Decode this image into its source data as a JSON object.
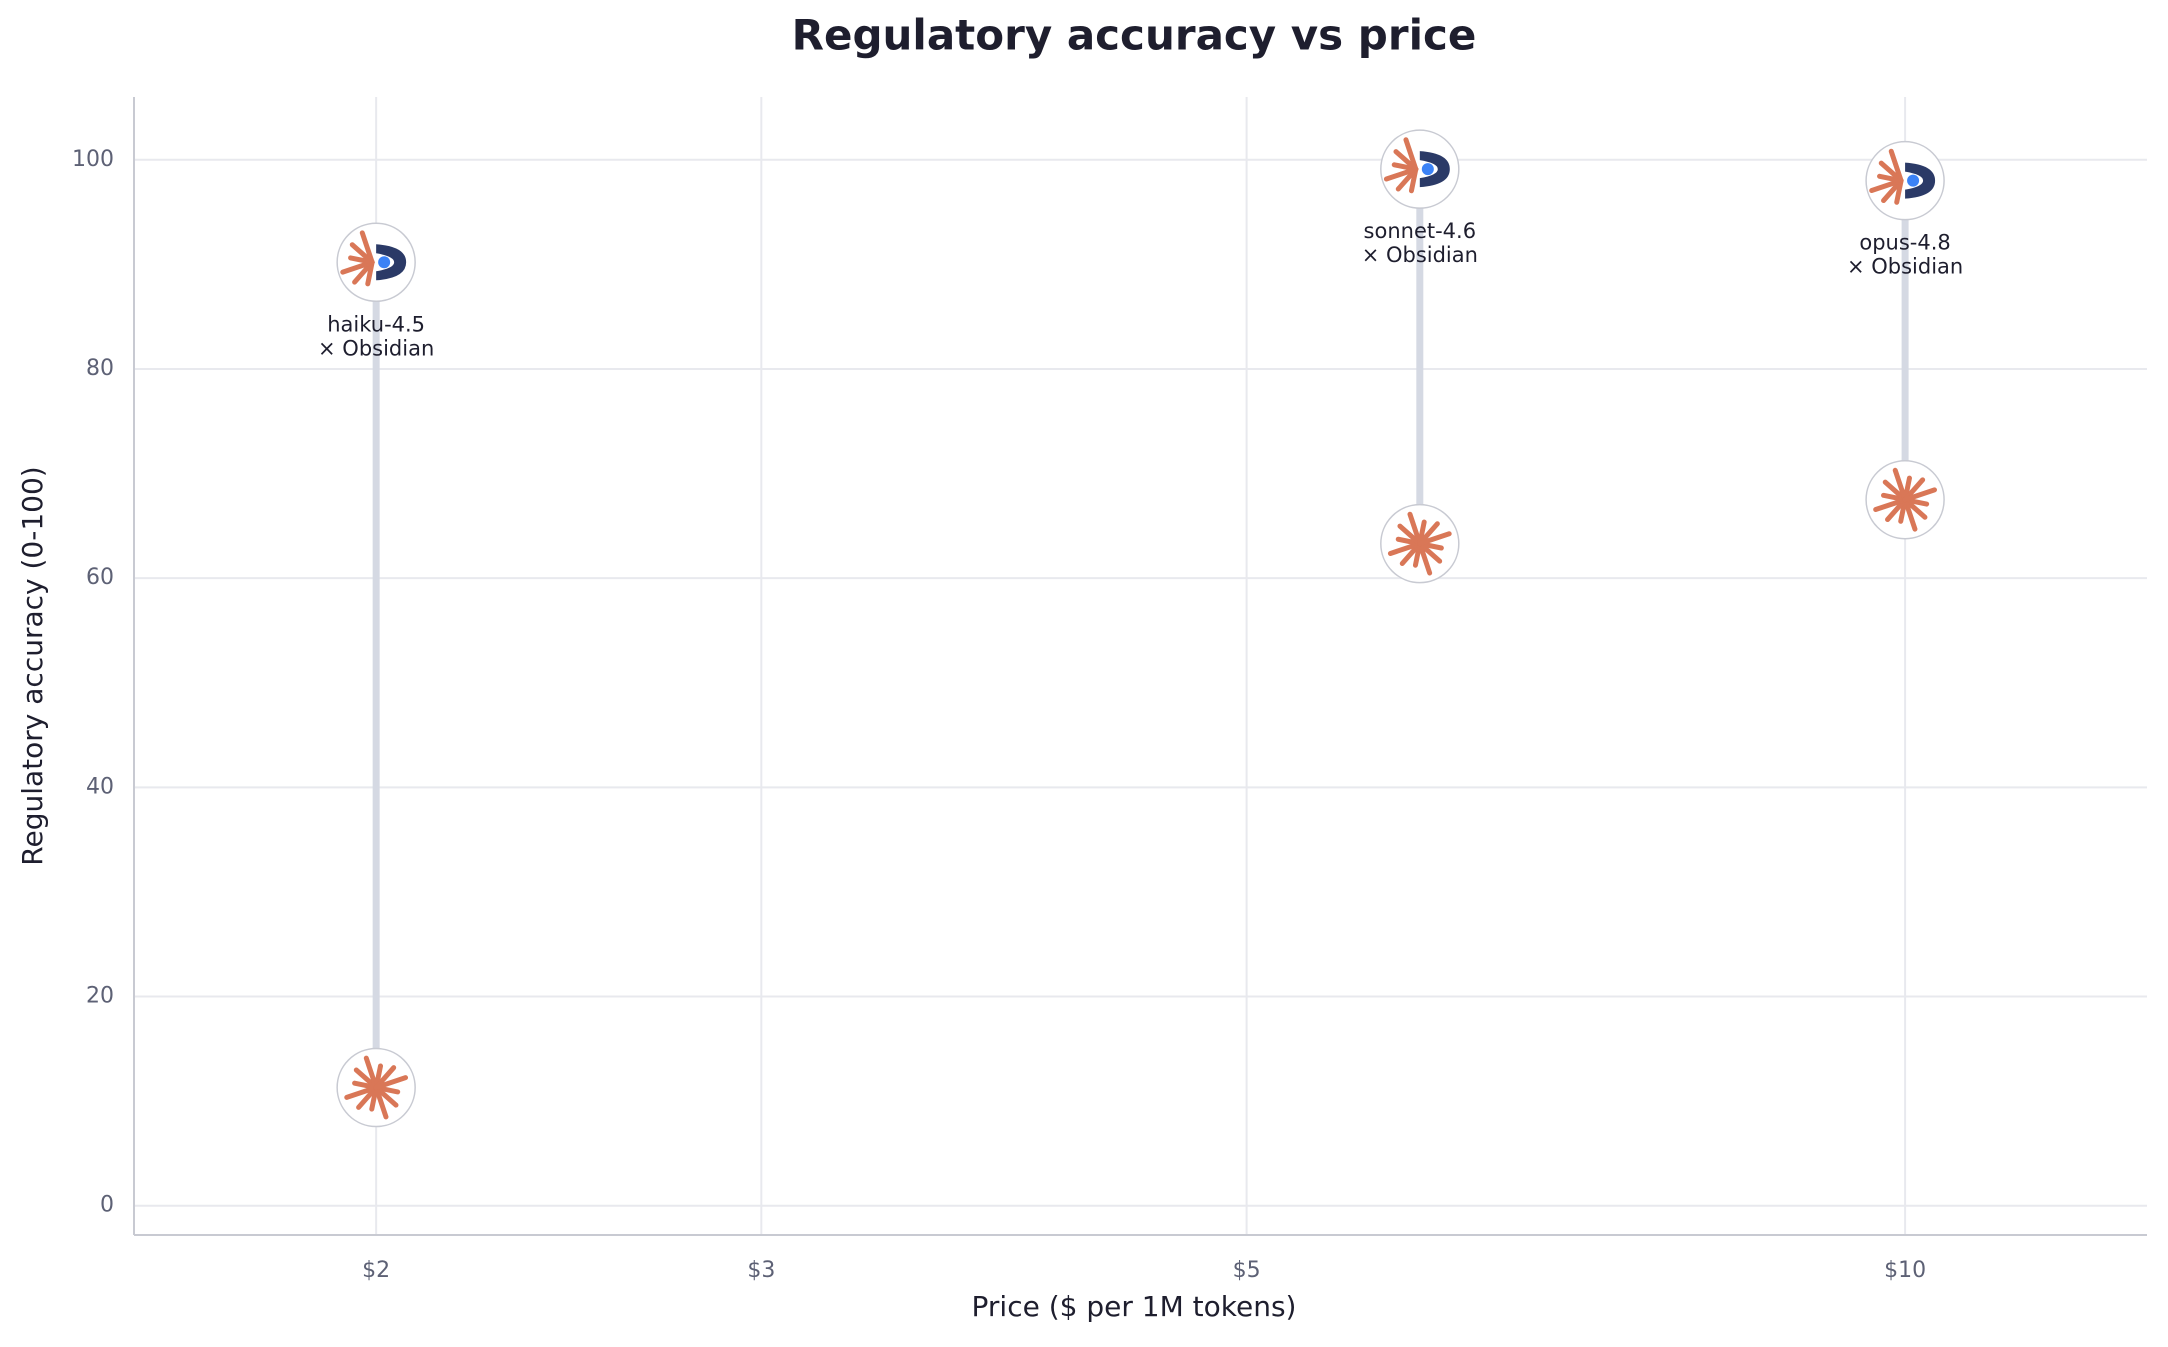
{
  "chart_data": {
    "type": "scatter",
    "title": "Regulatory accuracy vs price",
    "x_label": "Price ($ per 1M tokens)",
    "y_label": "Regulatory accuracy (0-100)",
    "x": [
      2,
      6,
      10
    ],
    "labels": [
      [
        "haiku-4.5",
        "× Obsidian"
      ],
      [
        "sonnet-4.6",
        "× Obsidian"
      ],
      [
        "opus-4.8",
        "× Obsidian"
      ]
    ],
    "series": [
      {
        "color": "#d97757",
        "values": [
          11.3,
          63.3,
          67.5
        ]
      },
      {
        "color": "#2b3a67",
        "values": [
          90.2,
          99.1,
          98.0
        ]
      }
    ],
    "connector_color": "#d5d9e3",
    "x_log": true,
    "xlim": [
      1.55,
      12.9
    ],
    "xticks": [
      {
        "value": 2,
        "label": "$2"
      },
      {
        "value": 3,
        "label": "$3"
      },
      {
        "value": 5,
        "label": "$5"
      },
      {
        "value": 10,
        "label": "$10"
      }
    ],
    "ylim": [
      -2.8,
      106
    ],
    "yticks": [
      0,
      20,
      40,
      60,
      80,
      100
    ],
    "grid": true
  }
}
